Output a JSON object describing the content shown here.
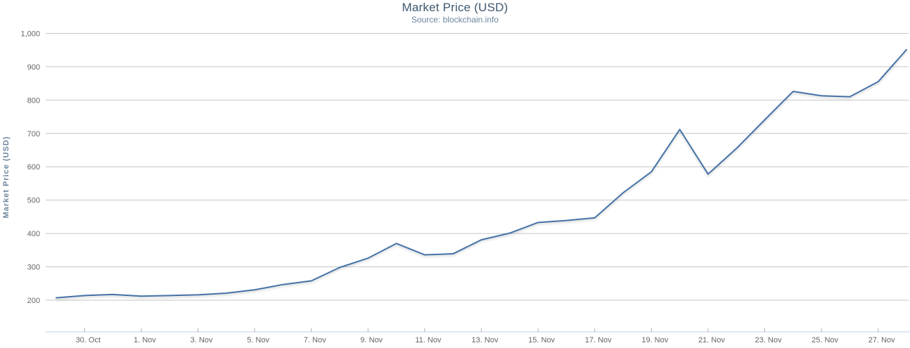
{
  "chart_data": {
    "type": "line",
    "title": "Market Price (USD)",
    "subtitle": "Source: blockchain.info",
    "ylabel": "Market Price (USD)",
    "xlabel": "",
    "legend": "none",
    "grid": "horizontal-only",
    "marker": "none",
    "ylim": [
      100,
      1000
    ],
    "y_ticks": [
      200,
      300,
      400,
      500,
      600,
      700,
      800,
      900,
      1000
    ],
    "y_tick_labels": [
      "200",
      "300",
      "400",
      "500",
      "600",
      "700",
      "800",
      "900",
      "1,000"
    ],
    "x": [
      "29. Oct",
      "30. Oct",
      "31. Oct",
      "1. Nov",
      "2. Nov",
      "3. Nov",
      "4. Nov",
      "5. Nov",
      "6. Nov",
      "7. Nov",
      "8. Nov",
      "9. Nov",
      "10. Nov",
      "11. Nov",
      "12. Nov",
      "13. Nov",
      "14. Nov",
      "15. Nov",
      "16. Nov",
      "17. Nov",
      "18. Nov",
      "19. Nov",
      "20. Nov",
      "21. Nov",
      "22. Nov",
      "23. Nov",
      "24. Nov",
      "25. Nov",
      "26. Nov",
      "27. Nov",
      "28. Nov"
    ],
    "x_tick_indices": [
      1,
      3,
      5,
      7,
      9,
      11,
      13,
      15,
      17,
      19,
      21,
      23,
      25,
      27,
      29
    ],
    "x_tick_labels": [
      "30. Oct",
      "1. Nov",
      "3. Nov",
      "5. Nov",
      "7. Nov",
      "9. Nov",
      "11. Nov",
      "13. Nov",
      "15. Nov",
      "17. Nov",
      "19. Nov",
      "21. Nov",
      "23. Nov",
      "25. Nov",
      "27. Nov"
    ],
    "series": [
      {
        "name": "Market Price (USD)",
        "color": "#4572A7",
        "values": [
          207,
          214,
          217,
          212,
          214,
          216,
          221,
          231,
          247,
          258,
          298,
          326,
          370,
          336,
          339,
          381,
          401,
          433,
          439,
          447,
          522,
          585,
          712,
          578,
          655,
          741,
          826,
          813,
          810,
          855,
          951
        ]
      }
    ],
    "colors": {
      "title": "#3E576F",
      "subtitle": "#6D869F",
      "axis_title": "#6D869F",
      "axis_label": "#666666",
      "gridline": "#C6C6C6",
      "axis_line": "#C0D0E0",
      "tick": "#A8B0BC",
      "background": "#FFFFFF"
    }
  }
}
